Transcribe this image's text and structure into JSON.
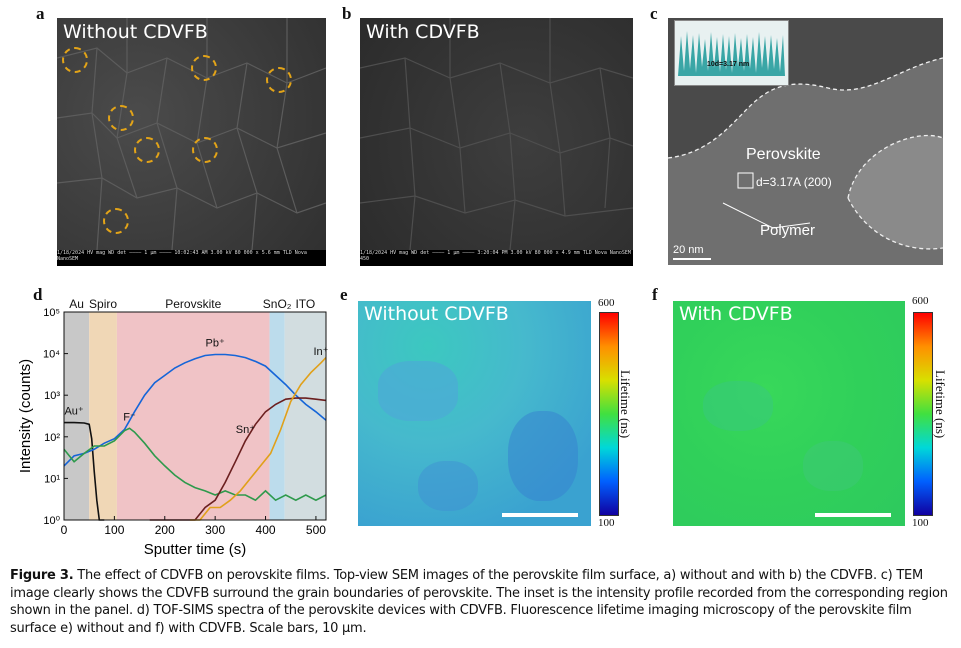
{
  "panels": {
    "a": {
      "label": "a",
      "title": "Without CDVFB",
      "info": "1/18/2024  HV   mag   WD   det  ———— 1 μm ————  10:02:43 AM  3.00 kV  80 000 x  5.6 mm  TLD   Nova NanoSEM"
    },
    "b": {
      "label": "b",
      "title": "With CDVFB",
      "info": "1/18/2024  HV   mag   WD   det  ———— 1 μm ————  3:20:04 PM  3.00 kV  80 000 x  4.9 mm  TLD   Nova NanoSEM 450"
    },
    "c": {
      "label": "c",
      "inset_text": "10d=3.17 nm",
      "perovskite": "Perovskite",
      "dspacing": "d=3.17A (200)",
      "polymer": "Polymer",
      "scale": "20 nm"
    },
    "d": {
      "label": "d"
    },
    "e": {
      "label": "e",
      "title": "Without CDVFB",
      "cb_max": "600",
      "cb_min": "100",
      "cb_label": "Lifetime (ns)"
    },
    "f": {
      "label": "f",
      "title": "With CDVFB",
      "cb_max": "600",
      "cb_min": "100",
      "cb_label": "Lifetime (ns)"
    }
  },
  "chart_data": {
    "type": "line",
    "xlabel": "Sputter time (s)",
    "ylabel": "Intensity (counts)",
    "xlim": [
      0,
      520
    ],
    "ylim_log10": [
      0,
      5
    ],
    "yscale": "log",
    "xticks": [
      "0",
      "100",
      "200",
      "300",
      "400",
      "500"
    ],
    "yticks": [
      "10⁰",
      "10¹",
      "10²",
      "10³",
      "10⁴",
      "10⁵"
    ],
    "regions": [
      {
        "label": "Au",
        "x0": 0,
        "x1": 50,
        "color": "#c8c8c8"
      },
      {
        "label": "Spiro",
        "x0": 50,
        "x1": 105,
        "color": "#f0d7b6"
      },
      {
        "label": "Perovskite",
        "x0": 105,
        "x1": 408,
        "color": "#f0c3c6"
      },
      {
        "label": "SnO₂",
        "x0": 408,
        "x1": 438,
        "color": "#bcdcec"
      },
      {
        "label": "ITO",
        "x0": 438,
        "x1": 520,
        "color": "#d2dde0"
      }
    ],
    "series": [
      {
        "name": "Au⁺",
        "color": "#111111",
        "x": [
          0,
          10,
          20,
          40,
          50,
          55,
          60,
          65,
          70,
          80
        ],
        "y": [
          220,
          220,
          220,
          215,
          200,
          90,
          15,
          3,
          1,
          1
        ]
      },
      {
        "name": "Pb⁺",
        "color": "#1565d8",
        "x": [
          0,
          20,
          40,
          60,
          80,
          100,
          120,
          140,
          160,
          180,
          200,
          220,
          240,
          260,
          280,
          300,
          320,
          340,
          360,
          380,
          400,
          420,
          440,
          460,
          480,
          500,
          520
        ],
        "y": [
          20,
          35,
          40,
          50,
          70,
          90,
          150,
          400,
          1000,
          2000,
          3000,
          4500,
          6000,
          7500,
          9000,
          9500,
          9500,
          9000,
          8000,
          6500,
          5000,
          3000,
          1800,
          1000,
          600,
          400,
          250
        ]
      },
      {
        "name": "F⁻",
        "color": "#2e9a4c",
        "x": [
          0,
          20,
          40,
          60,
          80,
          100,
          120,
          130,
          140,
          160,
          180,
          200,
          220,
          240,
          260,
          280,
          300,
          320,
          340,
          360,
          380,
          400,
          420,
          440,
          460,
          480,
          500,
          520
        ],
        "y": [
          50,
          25,
          40,
          60,
          60,
          80,
          140,
          160,
          130,
          70,
          35,
          20,
          12,
          8,
          6,
          5,
          4,
          5,
          4,
          4,
          3,
          5,
          3,
          4,
          3,
          4,
          3,
          4
        ]
      },
      {
        "name": "Sn⁺",
        "color": "#6b1f1f",
        "x": [
          170,
          190,
          210,
          240,
          260,
          280,
          300,
          320,
          340,
          360,
          380,
          400,
          420,
          440,
          460,
          480,
          500,
          520
        ],
        "y": [
          1,
          1,
          1,
          1,
          1,
          2,
          3,
          8,
          25,
          80,
          200,
          400,
          600,
          800,
          850,
          850,
          800,
          750
        ]
      },
      {
        "name": "In⁺",
        "color": "#e0a01a",
        "x": [
          250,
          270,
          290,
          310,
          330,
          350,
          370,
          390,
          410,
          430,
          450,
          470,
          490,
          510,
          520
        ],
        "y": [
          1,
          1,
          2,
          2,
          3,
          5,
          10,
          20,
          40,
          150,
          700,
          1800,
          3500,
          6000,
          8000
        ]
      }
    ],
    "annotations": [
      "Au",
      "Spiro",
      "Perovskite",
      "SnO₂",
      "ITO"
    ]
  },
  "caption": {
    "head": "Figure 3.",
    "text": " The effect of CDVFB on perovskite films. Top-view SEM images of the perovskite film surface, a) without and with b) the CDVFB. c) TEM image clearly shows the CDVFB surround the grain boundaries of perovskite. The inset is the intensity profile recorded from the corresponding region shown in the panel. d) TOF-SIMS spectra of the perovskite devices with CDVFB. Fluorescence lifetime imaging microscopy of the perovskite film surface e) without and f) with CDVFB. Scale bars, 10 μm."
  }
}
